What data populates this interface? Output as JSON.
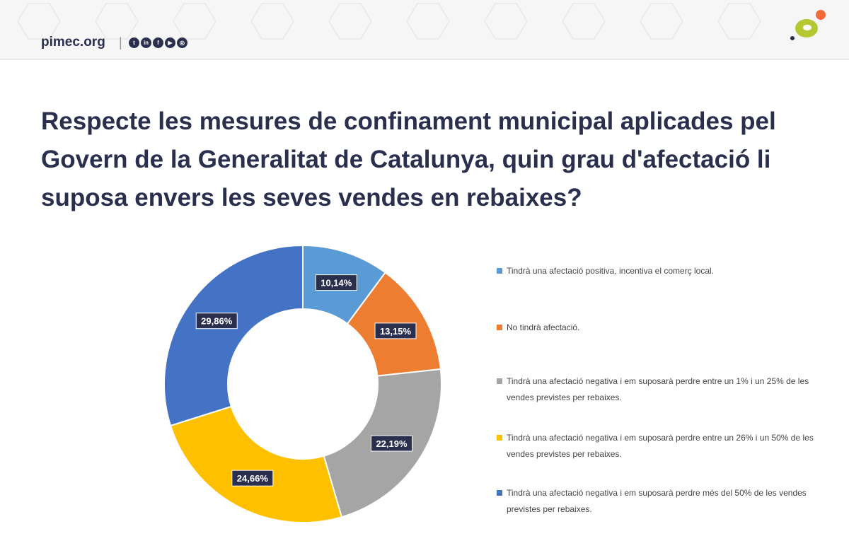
{
  "header": {
    "brand": "pimec.org",
    "separator": "|",
    "social_icons": [
      "twitter-icon",
      "linkedin-icon",
      "facebook-icon",
      "youtube-icon",
      "instagram-icon"
    ],
    "logo_colors": [
      "#b5c832",
      "#f26a3a",
      "#2b2f4e"
    ]
  },
  "colors": {
    "title": "#2b2f4e",
    "label_bg": "#2b2f4e"
  },
  "chart_data": {
    "type": "pie",
    "variant": "donut",
    "title": "Respecte les mesures de confinament municipal aplicades pel Govern de la Generalitat de Catalunya, quin grau d'afectació li suposa envers les seves vendes en rebaixes?",
    "legend_position": "right",
    "slices": [
      {
        "label": "Tindrà una afectació positiva, incentiva el comerç local.",
        "value": 10.14,
        "display": "10,14%",
        "color": "#5b9bd5"
      },
      {
        "label": "No tindrà afectació.",
        "value": 13.15,
        "display": "13,15%",
        "color": "#ed7d31"
      },
      {
        "label": "Tindrà una afectació negativa i em suposarà perdre entre un 1% i un 25% de les vendes previstes per rebaixes.",
        "value": 22.19,
        "display": "22,19%",
        "color": "#a5a5a5"
      },
      {
        "label": "Tindrà una afectació negativa i em suposarà perdre entre un 26% i un 50% de les vendes previstes per rebaixes.",
        "value": 24.66,
        "display": "24,66%",
        "color": "#ffc000"
      },
      {
        "label": "Tindrà una afectació negativa i em suposarà perdre més del 50% de les vendes previstes per rebaixes.",
        "value": 29.86,
        "display": "29,86%",
        "color": "#4472c4"
      }
    ]
  }
}
